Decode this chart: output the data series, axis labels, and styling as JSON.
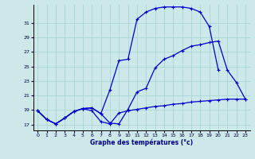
{
  "title": "Graphe des températures (°c)",
  "background_color": "#cce8e8",
  "grid_color": "#aad4d4",
  "line_color": "#0000cc",
  "xlim": [
    -0.5,
    23.5
  ],
  "ylim": [
    16.2,
    33.5
  ],
  "yticks": [
    17,
    19,
    21,
    23,
    25,
    27,
    29,
    31
  ],
  "xticks": [
    0,
    1,
    2,
    3,
    4,
    5,
    6,
    7,
    8,
    9,
    10,
    11,
    12,
    13,
    14,
    15,
    16,
    17,
    18,
    19,
    20,
    21,
    22,
    23
  ],
  "s1_x": [
    0,
    1,
    2,
    3,
    4,
    5,
    6,
    7,
    8,
    9,
    10,
    11,
    12,
    13,
    14,
    15,
    16,
    17,
    18,
    19,
    20,
    21,
    22,
    23
  ],
  "s1_y": [
    18.9,
    17.7,
    17.1,
    17.9,
    18.8,
    19.2,
    18.9,
    17.4,
    17.1,
    18.6,
    18.9,
    19.1,
    19.3,
    19.5,
    19.6,
    19.8,
    19.9,
    20.1,
    20.2,
    20.3,
    20.4,
    20.5,
    20.5,
    20.5
  ],
  "s2_x": [
    0,
    1,
    2,
    3,
    4,
    5,
    6,
    7,
    8,
    9,
    10,
    11,
    12,
    13,
    14,
    15,
    16,
    17,
    18,
    19,
    20,
    21,
    22,
    23
  ],
  "s2_y": [
    18.9,
    17.7,
    17.1,
    17.9,
    18.8,
    19.2,
    19.3,
    18.5,
    17.2,
    17.1,
    19.1,
    21.5,
    22.0,
    24.8,
    26.0,
    26.5,
    27.2,
    27.8,
    28.0,
    28.3,
    28.5,
    24.5,
    22.8,
    20.5
  ],
  "s3_x": [
    0,
    1,
    2,
    3,
    4,
    5,
    6,
    7,
    8,
    9,
    10,
    11,
    12,
    13,
    14,
    15,
    16,
    17,
    18,
    19,
    20
  ],
  "s3_y": [
    18.9,
    17.7,
    17.1,
    17.9,
    18.8,
    19.2,
    19.3,
    18.5,
    21.8,
    25.8,
    26.0,
    31.5,
    32.5,
    33.0,
    33.2,
    33.2,
    33.2,
    33.0,
    32.5,
    30.5,
    24.5
  ]
}
